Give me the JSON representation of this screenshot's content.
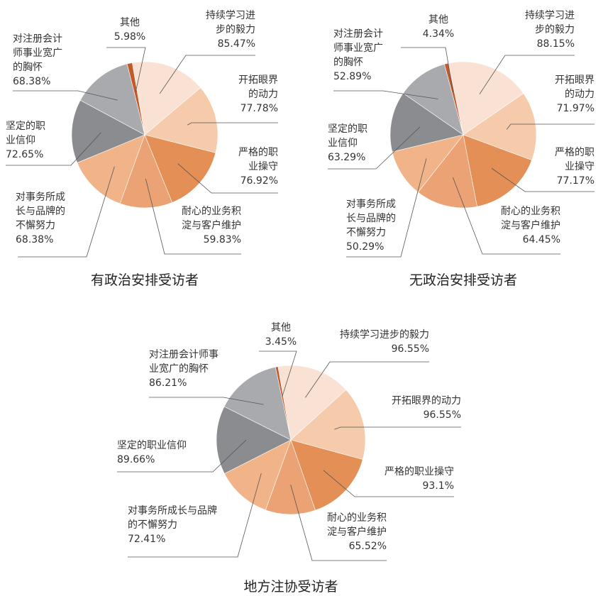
{
  "chart_data": [
    {
      "type": "pie",
      "title": "有政治安排受访者",
      "categories": [
        "其他",
        "持续学习进步的毅力",
        "开拓眼界的动力",
        "严格的职业操守",
        "耐心的业务积淀与客户维护",
        "对事务所成长与品牌的不懈努力",
        "坚定的职业信仰",
        "对注册会计师事业宽广的胸怀"
      ],
      "values": [
        5.98,
        85.47,
        77.78,
        76.92,
        59.83,
        68.38,
        72.65,
        68.38
      ],
      "value_labels": [
        "5.98%",
        "85.47%",
        "77.78%",
        "76.92%",
        "59.83%",
        "68.38%",
        "72.65%",
        "68.38%"
      ],
      "colors": [
        "#c25a2c",
        "#f9e2d4",
        "#f5cbab",
        "#e38f56",
        "#eba375",
        "#f0b488",
        "#8b8c90",
        "#a9aaae"
      ]
    },
    {
      "type": "pie",
      "title": "无政治安排受访者",
      "categories": [
        "其他",
        "持续学习进步的毅力",
        "开拓眼界的动力",
        "严格的职业操守",
        "耐心的业务积淀与客户维护",
        "对事务所成长与品牌的不懈努力",
        "坚定的职业信仰",
        "对注册会计师事业宽广的胸怀"
      ],
      "values": [
        4.34,
        88.15,
        71.97,
        77.17,
        64.45,
        50.29,
        63.29,
        52.89
      ],
      "value_labels": [
        "4.34%",
        "88.15%",
        "71.97%",
        "77.17%",
        "64.45%",
        "50.29%",
        "63.29%",
        "52.89%"
      ],
      "colors": [
        "#c25a2c",
        "#f9e2d4",
        "#f5cbab",
        "#e38f56",
        "#eba375",
        "#f0b488",
        "#8b8c90",
        "#a9aaae"
      ]
    },
    {
      "type": "pie",
      "title": "地方注协受访者",
      "categories": [
        "其他",
        "持续学习进步的毅力",
        "开拓眼界的动力",
        "严格的职业操守",
        "耐心的业务积淀与客户维护",
        "对事务所成长与品牌的不懈努力",
        "坚定的职业信仰",
        "对注册会计师事业宽广的胸怀"
      ],
      "values": [
        3.45,
        96.55,
        96.55,
        93.1,
        65.52,
        72.41,
        89.66,
        86.21
      ],
      "value_labels": [
        "3.45%",
        "96.55%",
        "96.55%",
        "93.1%",
        "65.52%",
        "72.41%",
        "89.66%",
        "86.21%"
      ],
      "colors": [
        "#c25a2c",
        "#f9e2d4",
        "#f5cbab",
        "#e38f56",
        "#eba375",
        "#f0b488",
        "#8b8c90",
        "#a9aaae"
      ]
    }
  ]
}
